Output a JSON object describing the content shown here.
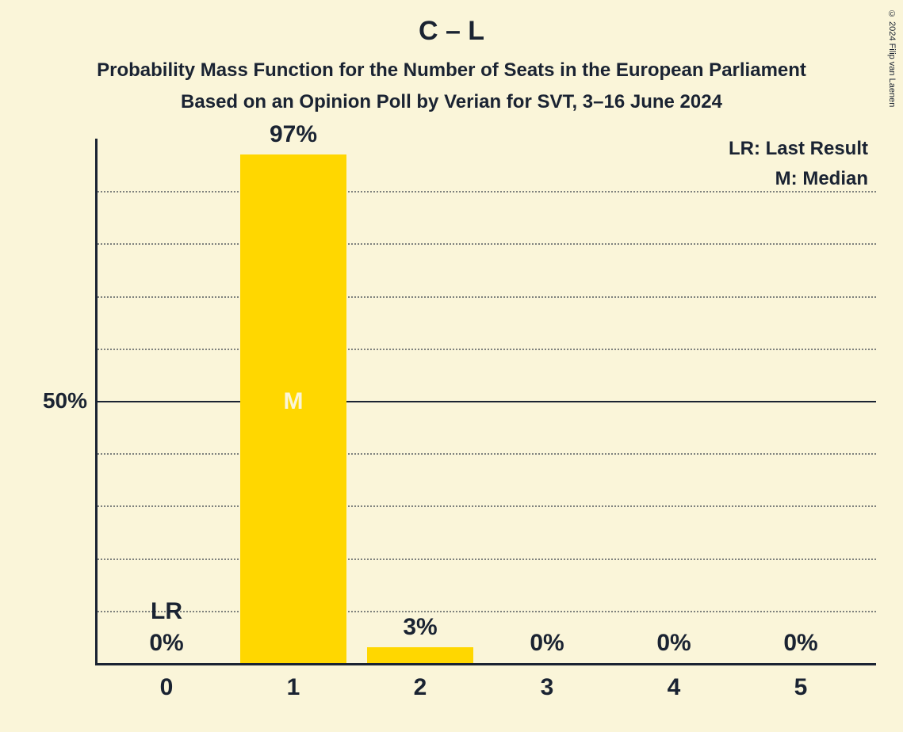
{
  "title": "C – L",
  "subtitle": "Probability Mass Function for the Number of Seats in the European Parliament",
  "subtitle2": "Based on an Opinion Poll by Verian for SVT, 3–16 June 2024",
  "copyright": "© 2024 Filip van Laenen",
  "chart": {
    "type": "bar",
    "background_color": "#faf5d9",
    "text_color": "#1a2332",
    "bar_color": "#ffd700",
    "median_text_color": "#faf5d9",
    "ylim_percent": 100,
    "gridlines": [
      {
        "pct": 10,
        "solid": false
      },
      {
        "pct": 20,
        "solid": false
      },
      {
        "pct": 30,
        "solid": false
      },
      {
        "pct": 40,
        "solid": false
      },
      {
        "pct": 50,
        "solid": true,
        "label": "50%"
      },
      {
        "pct": 60,
        "solid": false
      },
      {
        "pct": 70,
        "solid": false
      },
      {
        "pct": 80,
        "solid": false
      },
      {
        "pct": 90,
        "solid": false
      }
    ],
    "legend": {
      "lr": "LR: Last Result",
      "m": "M: Median"
    },
    "categories": [
      "0",
      "1",
      "2",
      "3",
      "4",
      "5"
    ],
    "bars": [
      {
        "value_pct": 0,
        "value_label": "0%",
        "extra_label": "LR"
      },
      {
        "value_pct": 97,
        "value_label": "97%",
        "median": true,
        "median_label": "M"
      },
      {
        "value_pct": 3,
        "value_label": "3%"
      },
      {
        "value_pct": 0,
        "value_label": "0%"
      },
      {
        "value_pct": 0,
        "value_label": "0%"
      },
      {
        "value_pct": 0,
        "value_label": "0%"
      }
    ]
  }
}
